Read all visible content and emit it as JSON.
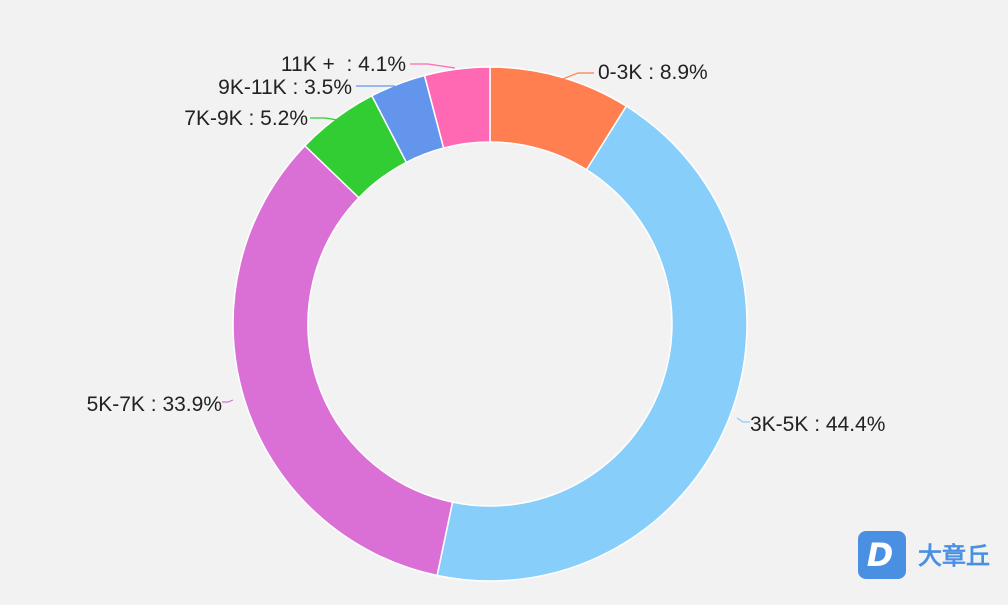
{
  "chart_data": {
    "type": "pie",
    "variant": "donut",
    "title": "",
    "slices": [
      {
        "label": "0-3K : 8.9%",
        "value": 8.9,
        "color": "#ff7f50"
      },
      {
        "label": "3K-5K : 44.4%",
        "value": 44.4,
        "color": "#87cefa"
      },
      {
        "label": "5K-7K : 33.9%",
        "value": 33.9,
        "color": "#da70d6"
      },
      {
        "label": "7K-9K : 5.2%",
        "value": 5.2,
        "color": "#32cd32"
      },
      {
        "label": "9K-11K : 3.5%",
        "value": 3.5,
        "color": "#6495ed"
      },
      {
        "label": "11K +  : 4.1%",
        "value": 4.1,
        "color": "#ff69b4"
      }
    ],
    "start": "top",
    "direction": "clockwise",
    "legend": "none"
  },
  "watermark": {
    "text": "大章丘",
    "badge_letter": "D",
    "color": "#4a90e2"
  },
  "background_color": "#f2f2f2"
}
